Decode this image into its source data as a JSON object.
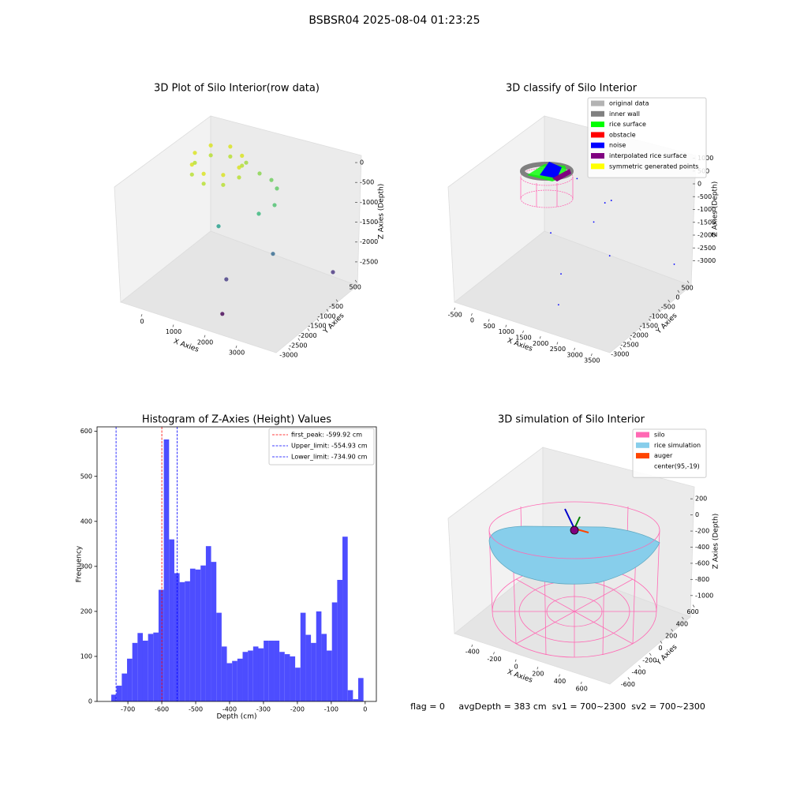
{
  "suptitle": "BSBSR04 2025-08-04 01:23:25",
  "footer": "flag = 0     avgDepth = 383 cm  sv1 = 700~2300  sv2 = 700~2300",
  "chart_data": [
    {
      "type": "scatter3d",
      "title": "3D Plot of Silo Interior(row data)",
      "x_label": "X Axies",
      "y_label": "Y Axies",
      "z_label": "Z Axies (Depth)",
      "xlim": [
        -700,
        3900
      ],
      "ylim": [
        700,
        -3200
      ],
      "zlim": [
        200,
        -2800
      ],
      "xticks": [
        0,
        1000,
        2000,
        3000
      ],
      "yticks": [
        500,
        -500,
        -1000,
        -1500,
        -2000,
        -2500,
        -3000
      ],
      "zticks": [
        0,
        -500,
        -1000,
        -1500,
        -2000,
        -2500
      ],
      "x": [
        700,
        495,
        0,
        -495,
        -700,
        -495,
        0,
        495,
        700,
        495,
        0,
        -495,
        -700,
        -495,
        0,
        495,
        925,
        1350,
        1725,
        1900,
        1825,
        1325,
        50,
        1775,
        1200,
        3675,
        1375
      ],
      "y": [
        0,
        495,
        700,
        495,
        0,
        -495,
        -700,
        -495,
        0,
        495,
        700,
        495,
        0,
        -495,
        -700,
        -495,
        0,
        0,
        0,
        0,
        0,
        0,
        0,
        0,
        -1500,
        0,
        -2000
      ],
      "z": [
        0,
        0,
        0,
        0,
        0,
        0,
        0,
        0,
        -250,
        -250,
        -250,
        -250,
        -250,
        -250,
        -250,
        -250,
        180,
        20,
        -45,
        -212,
        -650,
        -1000,
        -1650,
        -1890,
        -1950,
        -1850,
        -2530
      ],
      "colors": [
        "#d8e219",
        "#d8e219",
        "#d8e219",
        "#d8e219",
        "#d8e219",
        "#d8e219",
        "#d8e219",
        "#d8e219",
        "#b5de2b",
        "#b5de2b",
        "#b5de2b",
        "#b5de2b",
        "#b5de2b",
        "#b5de2b",
        "#b5de2b",
        "#b5de2b",
        "#a0da39",
        "#86d549",
        "#6ccd5a",
        "#5ec962",
        "#4ac16d",
        "#35b779",
        "#1f9e89",
        "#31688e",
        "#443983",
        "#46327e",
        "#440154"
      ]
    },
    {
      "type": "scatter3d",
      "title": "3D classify of Silo Interior",
      "x_label": "X Axies",
      "y_label": "Y Axies",
      "z_label": "Z Axies (Depth)",
      "xlim": [
        -700,
        3700
      ],
      "ylim": [
        700,
        -3200
      ],
      "zlim": [
        1200,
        -3200
      ],
      "xticks": [
        -500,
        0,
        500,
        1000,
        1500,
        2000,
        2500,
        3000,
        3500
      ],
      "yticks": [
        500,
        0,
        -500,
        -1000,
        -1500,
        -2000,
        -2500,
        -3000
      ],
      "zticks": [
        1000,
        500,
        0,
        -500,
        -1000,
        -1500,
        -2000,
        -2500,
        -3000
      ],
      "legend": [
        {
          "name": "original data",
          "color": "#b3b3b3"
        },
        {
          "name": "inner wall",
          "color": "#808080"
        },
        {
          "name": "rice surface",
          "color": "#00ff00"
        },
        {
          "name": "obstacle",
          "color": "#ff0000"
        },
        {
          "name": "noise",
          "color": "#0000ff"
        },
        {
          "name": "interpolated rice surface",
          "color": "#800080"
        },
        {
          "name": "symmetric generated points",
          "color": "#ffff00"
        }
      ],
      "x": [
        884,
        1698,
        1884,
        1372,
        116,
        1837,
        3721,
        977,
        1465
      ],
      "y": [
        0,
        0,
        0,
        0,
        0,
        0,
        0,
        -1000,
        -2000
      ],
      "z": [
        262,
        -319,
        -144,
        -1212,
        -2200,
        -2322,
        -1809,
        -2672,
        -2916
      ],
      "color": "#0000ff"
    },
    {
      "type": "histogram",
      "title": "Histogram of Z-Axies (Height) Values",
      "x_label": "Depth (cm)",
      "y_label": "Frequency",
      "color": "#4d4dff",
      "xlim": [
        -791,
        33
      ],
      "ylim": [
        0,
        610
      ],
      "xticks": [
        -700,
        -600,
        -500,
        -400,
        -300,
        -200,
        -100,
        0
      ],
      "yticks": [
        0,
        100,
        200,
        300,
        400,
        500,
        600
      ],
      "bins": [
        -749,
        -733.5,
        -718,
        -702.5,
        -687,
        -671.5,
        -656,
        -640.5,
        -625,
        -609.5,
        -594,
        -578.5,
        -563,
        -547.5,
        -532,
        -516.5,
        -501,
        -485.5,
        -470,
        -454.5,
        -439,
        -423.5,
        -408,
        -392.5,
        -377,
        -361.5,
        -346,
        -330.5,
        -315,
        -299.5,
        -284,
        -268.5,
        -253,
        -237.5,
        -222,
        -206.5,
        -191,
        -175.5,
        -160,
        -144.5,
        -129,
        -113.5,
        -98,
        -82.5,
        -67,
        -51.5,
        -36,
        -20.5,
        -5
      ],
      "values": [
        15,
        35,
        62,
        95,
        130,
        152,
        135,
        150,
        153,
        248,
        582,
        360,
        285,
        265,
        267,
        295,
        293,
        302,
        345,
        310,
        197,
        122,
        85,
        90,
        95,
        110,
        113,
        122,
        118,
        135,
        135,
        135,
        110,
        105,
        100,
        75,
        197,
        148,
        130,
        200,
        150,
        113,
        220,
        270,
        366,
        25,
        5,
        52
      ],
      "vlines": [
        {
          "value": -599.92,
          "label": "first_peak: -599.92 cm",
          "color": "#ff0000"
        },
        {
          "value": -554.93,
          "label": "Upper_limit: -554.93 cm",
          "color": "#0000ff"
        },
        {
          "value": -734.9,
          "label": "Lower_limit: -734.90 cm",
          "color": "#0000ff"
        }
      ]
    },
    {
      "type": "surface3d",
      "title": "3D simulation of Silo Interior",
      "x_label": "X Axies",
      "y_label": "Y Axies",
      "z_label": "Z Axies (Depth)",
      "xlim": [
        -550,
        750
      ],
      "ylim": [
        700,
        -700
      ],
      "zlim": [
        300,
        -1100
      ],
      "xticks": [
        -400,
        -200,
        0,
        200,
        400,
        600
      ],
      "yticks": [
        600,
        400,
        200,
        0,
        -200,
        -400,
        -600
      ],
      "zticks": [
        200,
        0,
        -200,
        -400,
        -600,
        -800,
        -1000
      ],
      "legend": [
        {
          "name": "silo",
          "color": "#ff69b4"
        },
        {
          "name": "rice simulation",
          "color": "#87ceeb"
        },
        {
          "name": "auger",
          "color": "#ff4500"
        },
        {
          "name": "center(95,-19)"
        }
      ]
    }
  ]
}
